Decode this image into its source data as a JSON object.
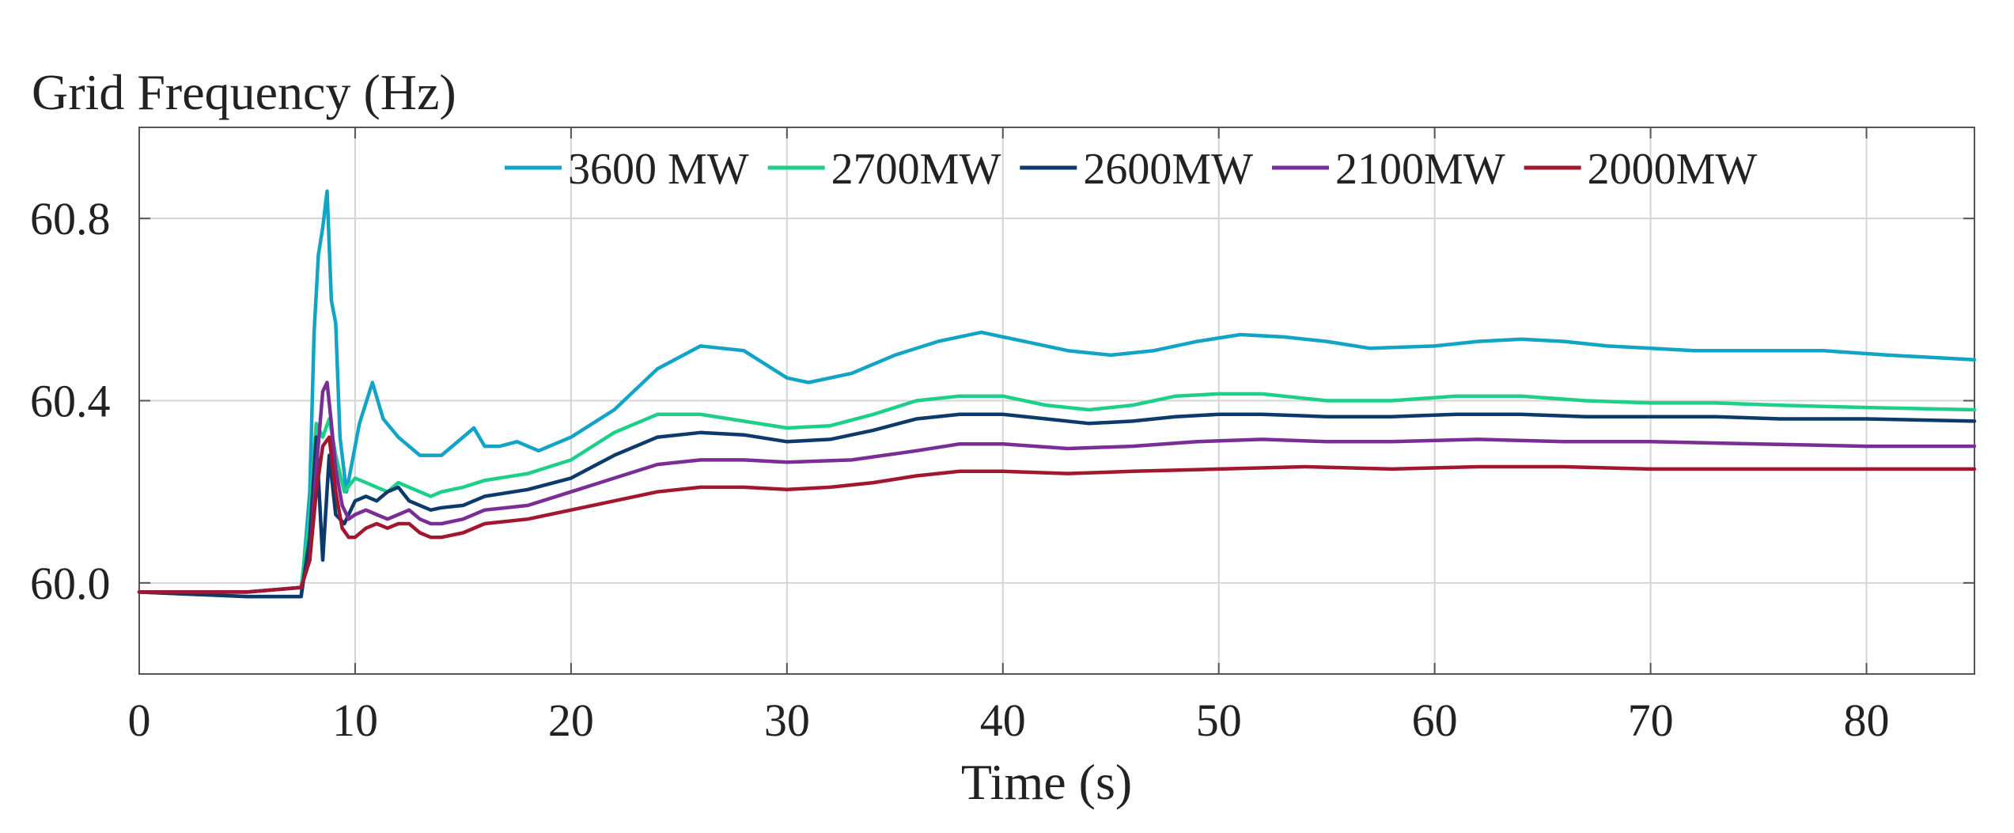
{
  "chart_data": {
    "type": "line",
    "title": "",
    "ylabel": "Grid Frequency (Hz)",
    "xlabel": "Time (s)",
    "xlim": [
      0,
      85
    ],
    "ylim": [
      59.8,
      61.0
    ],
    "xticks": [
      0,
      10,
      20,
      30,
      40,
      50,
      60,
      70,
      80
    ],
    "xtick_labels": [
      "0",
      "10",
      "20",
      "30",
      "40",
      "50",
      "60",
      "70",
      "80"
    ],
    "yticks": [
      60.0,
      60.4,
      60.8
    ],
    "ytick_labels": [
      "60.0",
      "60.4",
      "60.8"
    ],
    "grid": true,
    "legend_position": "top",
    "series": [
      {
        "name": "3600 MW",
        "color": "#12a4c4",
        "x": [
          0,
          5,
          7.5,
          7.9,
          8.1,
          8.3,
          8.5,
          8.7,
          8.9,
          9.1,
          9.3,
          9.6,
          10.2,
          10.8,
          11.3,
          12,
          13,
          14,
          15,
          15.5,
          16,
          16.7,
          17.5,
          18.5,
          20,
          22,
          24,
          26,
          28,
          30,
          31,
          33,
          35,
          37,
          39,
          41,
          43,
          45,
          47,
          49,
          51,
          53,
          55,
          57,
          60,
          62,
          64,
          66,
          68,
          70,
          72,
          75,
          78,
          81,
          85
        ],
        "y": [
          59.98,
          59.97,
          59.97,
          60.2,
          60.55,
          60.72,
          60.78,
          60.86,
          60.62,
          60.57,
          60.32,
          60.2,
          60.35,
          60.44,
          60.36,
          60.32,
          60.28,
          60.28,
          60.32,
          60.34,
          60.3,
          60.3,
          60.31,
          60.29,
          60.32,
          60.38,
          60.47,
          60.52,
          60.51,
          60.45,
          60.44,
          60.46,
          60.5,
          60.53,
          60.55,
          60.53,
          60.51,
          60.5,
          60.51,
          60.53,
          60.545,
          60.54,
          60.53,
          60.515,
          60.52,
          60.53,
          60.535,
          60.53,
          60.52,
          60.515,
          60.51,
          60.51,
          60.51,
          60.5,
          60.49
        ]
      },
      {
        "name": "2700MW",
        "color": "#1ecf8a",
        "x": [
          0,
          5,
          7.5,
          7.9,
          8.2,
          8.5,
          8.8,
          9.1,
          9.5,
          10,
          10.5,
          11,
          11.5,
          12,
          12.5,
          13,
          13.5,
          14,
          15,
          16,
          18,
          20,
          22,
          24,
          26,
          28,
          30,
          32,
          34,
          36,
          38,
          40,
          42,
          44,
          46,
          48,
          50,
          52,
          55,
          58,
          61,
          64,
          67,
          70,
          73,
          76,
          80,
          85
        ],
        "y": [
          59.98,
          59.98,
          59.99,
          60.15,
          60.35,
          60.32,
          60.36,
          60.28,
          60.2,
          60.23,
          60.22,
          60.21,
          60.2,
          60.22,
          60.21,
          60.2,
          60.19,
          60.2,
          60.21,
          60.225,
          60.24,
          60.27,
          60.33,
          60.37,
          60.37,
          60.355,
          60.34,
          60.345,
          60.37,
          60.4,
          60.41,
          60.41,
          60.39,
          60.38,
          60.39,
          60.41,
          60.415,
          60.415,
          60.4,
          60.4,
          60.41,
          60.41,
          60.4,
          60.395,
          60.395,
          60.39,
          60.385,
          60.38
        ]
      },
      {
        "name": "2600MW",
        "color": "#0b3a6b",
        "x": [
          0,
          5,
          7.5,
          7.9,
          8.2,
          8.5,
          8.8,
          9.1,
          9.5,
          10,
          10.5,
          11,
          11.5,
          12,
          12.5,
          13,
          13.5,
          14,
          15,
          16,
          18,
          20,
          22,
          24,
          26,
          28,
          30,
          32,
          34,
          36,
          38,
          40,
          42,
          44,
          46,
          48,
          50,
          52,
          55,
          58,
          61,
          64,
          67,
          70,
          73,
          76,
          80,
          85
        ],
        "y": [
          59.98,
          59.97,
          59.97,
          60.1,
          60.32,
          60.05,
          60.28,
          60.15,
          60.13,
          60.18,
          60.19,
          60.18,
          60.2,
          60.21,
          60.18,
          60.17,
          60.16,
          60.165,
          60.17,
          60.19,
          60.205,
          60.23,
          60.28,
          60.32,
          60.33,
          60.325,
          60.31,
          60.315,
          60.335,
          60.36,
          60.37,
          60.37,
          60.36,
          60.35,
          60.355,
          60.365,
          60.37,
          60.37,
          60.365,
          60.365,
          60.37,
          60.37,
          60.365,
          60.365,
          60.365,
          60.36,
          60.36,
          60.355
        ]
      },
      {
        "name": "2100MW",
        "color": "#7b2d96",
        "x": [
          0,
          5,
          7.5,
          7.9,
          8.2,
          8.5,
          8.7,
          8.9,
          9.1,
          9.4,
          9.7,
          10,
          10.5,
          11,
          11.5,
          12,
          12.5,
          13,
          13.5,
          14,
          15,
          16,
          18,
          20,
          22,
          24,
          26,
          28,
          30,
          33,
          36,
          38,
          40,
          43,
          46,
          49,
          52,
          55,
          58,
          62,
          66,
          70,
          75,
          80,
          85
        ],
        "y": [
          59.98,
          59.98,
          59.99,
          60.05,
          60.25,
          60.42,
          60.44,
          60.35,
          60.25,
          60.17,
          60.14,
          60.15,
          60.16,
          60.15,
          60.14,
          60.15,
          60.16,
          60.14,
          60.13,
          60.13,
          60.14,
          60.16,
          60.17,
          60.2,
          60.23,
          60.26,
          60.27,
          60.27,
          60.265,
          60.27,
          60.29,
          60.305,
          60.305,
          60.295,
          60.3,
          60.31,
          60.315,
          60.31,
          60.31,
          60.315,
          60.31,
          60.31,
          60.305,
          60.3,
          60.3
        ]
      },
      {
        "name": "2000MW",
        "color": "#a0172f",
        "x": [
          0,
          5,
          7.5,
          7.9,
          8.2,
          8.5,
          8.8,
          9.1,
          9.4,
          9.7,
          10,
          10.5,
          11,
          11.5,
          12,
          12.5,
          13,
          13.5,
          14,
          15,
          16,
          18,
          20,
          22,
          24,
          26,
          28,
          30,
          32,
          34,
          36,
          38,
          40,
          43,
          46,
          50,
          54,
          58,
          62,
          66,
          70,
          75,
          80,
          85
        ],
        "y": [
          59.98,
          59.98,
          59.99,
          60.05,
          60.2,
          60.3,
          60.32,
          60.2,
          60.12,
          60.1,
          60.1,
          60.12,
          60.13,
          60.12,
          60.13,
          60.13,
          60.11,
          60.1,
          60.1,
          60.11,
          60.13,
          60.14,
          60.16,
          60.18,
          60.2,
          60.21,
          60.21,
          60.205,
          60.21,
          60.22,
          60.235,
          60.245,
          60.245,
          60.24,
          60.245,
          60.25,
          60.255,
          60.25,
          60.255,
          60.255,
          60.25,
          60.25,
          60.25,
          60.25
        ]
      }
    ]
  }
}
